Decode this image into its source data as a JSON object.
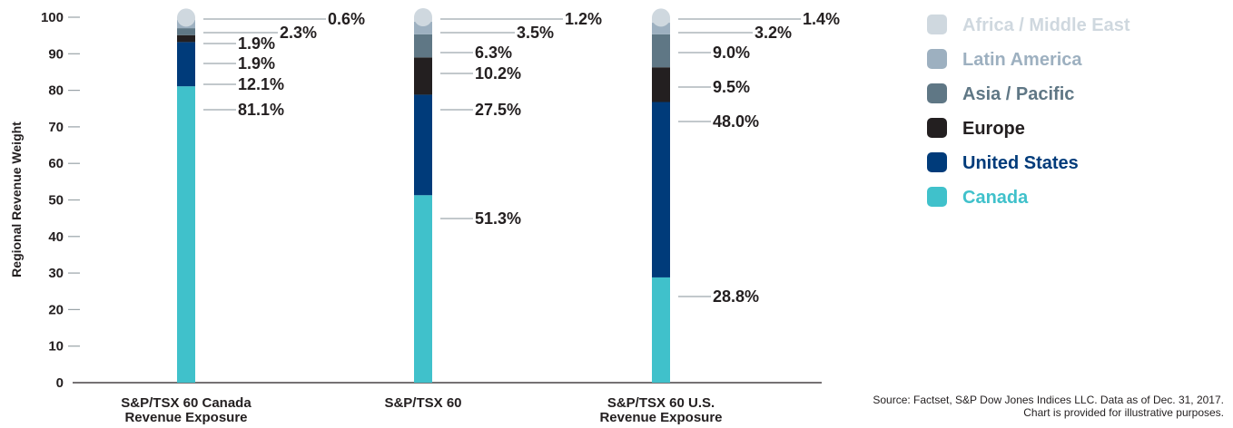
{
  "chart_data": {
    "type": "bar",
    "stacked": true,
    "title": "",
    "xlabel": "",
    "ylabel": "Regional Revenue Weight",
    "ylim": [
      0,
      100
    ],
    "yticks": [
      "0",
      "10",
      "20",
      "30",
      "40",
      "50",
      "60",
      "70",
      "80",
      "90",
      "100"
    ],
    "categories": [
      [
        "S&P/TSX 60 Canada",
        "Revenue Exposure"
      ],
      [
        "S&P/TSX 60"
      ],
      [
        "S&P/TSX 60 U.S.",
        "Revenue Exposure"
      ]
    ],
    "series": [
      {
        "name": "Canada",
        "color": "#40c1cb",
        "values": [
          81.1,
          51.3,
          28.8
        ],
        "labels": [
          "81.1%",
          "51.3%",
          "28.8%"
        ]
      },
      {
        "name": "United States",
        "color": "#003b7a",
        "values": [
          12.1,
          27.5,
          48.0
        ],
        "labels": [
          "12.1%",
          "27.5%",
          "48.0%"
        ]
      },
      {
        "name": "Europe",
        "color": "#231f20",
        "values": [
          1.9,
          10.2,
          9.5
        ],
        "labels": [
          "1.9%",
          "10.2%",
          "9.5%"
        ]
      },
      {
        "name": "Asia / Pacific",
        "color": "#5f7785",
        "values": [
          1.9,
          6.3,
          9.0
        ],
        "labels": [
          "1.9%",
          "6.3%",
          "9.0%"
        ]
      },
      {
        "name": "Latin America",
        "color": "#9db0c0",
        "values": [
          2.3,
          3.5,
          3.2
        ],
        "labels": [
          "2.3%",
          "3.5%",
          "3.2%"
        ]
      },
      {
        "name": "Africa / Middle East",
        "color": "#cfd8df",
        "values": [
          0.6,
          1.2,
          1.4
        ],
        "labels": [
          "0.6%",
          "1.2%",
          "1.4%"
        ]
      }
    ],
    "legend": {
      "position": "top-right",
      "order": [
        "Africa / Middle East",
        "Latin America",
        "Asia / Pacific",
        "Europe",
        "United States",
        "Canada"
      ]
    },
    "grid": false
  },
  "source_note": [
    "Source: Factset, S&P Dow Jones Indices LLC. Data as of Dec. 31, 2017.",
    "Chart is provided for illustrative purposes."
  ]
}
